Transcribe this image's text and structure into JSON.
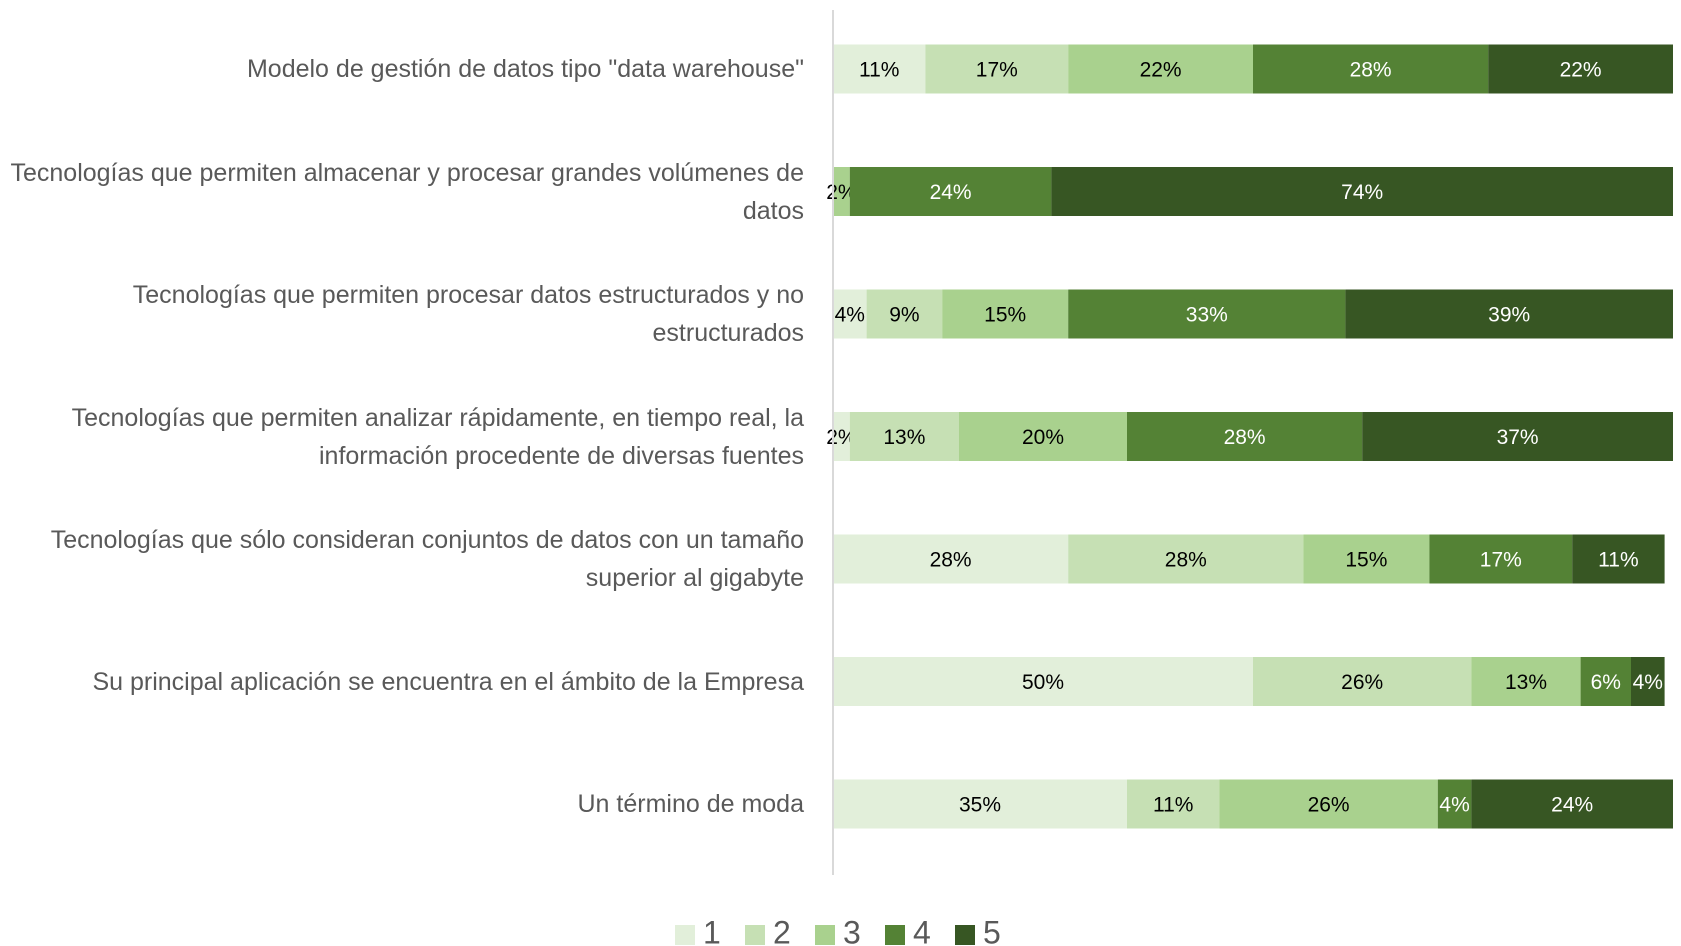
{
  "chart_data": {
    "type": "stacked-bar-horizontal",
    "categories": [
      "Modelo de gestión de datos tipo \"data warehouse\"",
      "Tecnologías que permiten almacenar y procesar grandes volúmenes de datos",
      "Tecnologías que permiten procesar datos estructurados y no estructurados",
      "Tecnologías que permiten analizar rápidamente, en tiempo real, la información procedente de diversas fuentes",
      "Tecnologías que sólo consideran conjuntos de datos con un tamaño superior al gigabyte",
      "Su principal aplicación se encuentra en el ámbito de la Empresa",
      "Un término de moda"
    ],
    "series": [
      {
        "name": "1",
        "color": "#e2efda",
        "values": [
          11,
          0,
          4,
          2,
          28,
          50,
          35
        ],
        "value_labels": [
          "11%",
          null,
          "4%",
          "2%",
          "28%",
          "50%",
          "35%"
        ]
      },
      {
        "name": "2",
        "color": "#c6e0b4",
        "values": [
          17,
          0,
          9,
          13,
          28,
          26,
          11
        ],
        "value_labels": [
          "17%",
          null,
          "9%",
          "13%",
          "28%",
          "26%",
          "11%"
        ]
      },
      {
        "name": "3",
        "color": "#a9d18e",
        "values": [
          22,
          2,
          15,
          20,
          15,
          13,
          26
        ],
        "value_labels": [
          "22%",
          "2%",
          "15%",
          "20%",
          "15%",
          "13%",
          "26%"
        ]
      },
      {
        "name": "4",
        "color": "#548235",
        "values": [
          28,
          24,
          33,
          28,
          17,
          6,
          4
        ],
        "value_labels": [
          "28%",
          "24%",
          "33%",
          "28%",
          "17%",
          "6%",
          "4%"
        ]
      },
      {
        "name": "5",
        "color": "#375623",
        "values": [
          22,
          74,
          39,
          37,
          11,
          4,
          24
        ],
        "value_labels": [
          "22%",
          "74%",
          "39%",
          "37%",
          "11%",
          "4%",
          "24%"
        ]
      }
    ],
    "legend": "bottom"
  }
}
